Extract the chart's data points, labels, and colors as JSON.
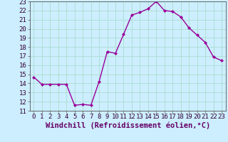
{
  "x": [
    0,
    1,
    2,
    3,
    4,
    5,
    6,
    7,
    8,
    9,
    10,
    11,
    12,
    13,
    14,
    15,
    16,
    17,
    18,
    19,
    20,
    21,
    22,
    23
  ],
  "y": [
    14.7,
    13.9,
    13.9,
    13.9,
    13.9,
    11.6,
    11.7,
    11.6,
    14.2,
    17.5,
    17.3,
    19.4,
    21.5,
    21.8,
    22.2,
    23.0,
    22.0,
    21.9,
    21.3,
    20.1,
    19.3,
    18.5,
    16.9,
    16.5
  ],
  "line_color": "#990099",
  "marker": "D",
  "marker_size": 2.0,
  "bg_color": "#cceeff",
  "grid_color": "#aaddcc",
  "xlabel": "Windchill (Refroidissement éolien,°C)",
  "xlabel_fontsize": 7.5,
  "xlim": [
    -0.5,
    23.5
  ],
  "ylim": [
    11,
    23
  ],
  "yticks": [
    11,
    12,
    13,
    14,
    15,
    16,
    17,
    18,
    19,
    20,
    21,
    22,
    23
  ],
  "xticks": [
    0,
    1,
    2,
    3,
    4,
    5,
    6,
    7,
    8,
    9,
    10,
    11,
    12,
    13,
    14,
    15,
    16,
    17,
    18,
    19,
    20,
    21,
    22,
    23
  ],
  "tick_fontsize": 6.5,
  "line_width": 1.0
}
